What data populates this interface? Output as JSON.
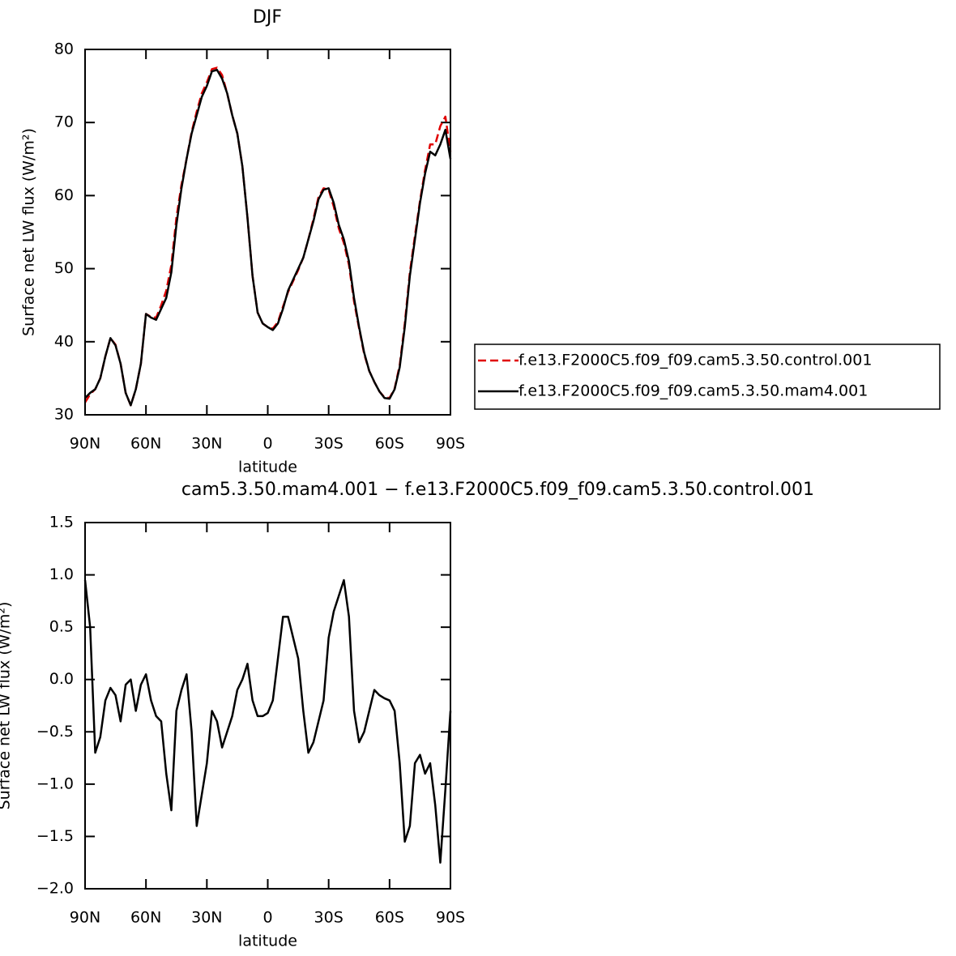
{
  "chart_data": [
    {
      "type": "line",
      "title": "DJF",
      "xlabel": "latitude",
      "ylabel": "Surface net LW flux (W/m²)",
      "x": [
        90,
        87.5,
        85,
        82.5,
        80,
        77.5,
        75,
        72.5,
        70,
        67.5,
        65,
        62.5,
        60,
        57.5,
        55,
        52.5,
        50,
        47.5,
        45,
        42.5,
        40,
        37.5,
        35,
        32.5,
        30,
        27.5,
        25,
        22.5,
        20,
        17.5,
        15,
        12.5,
        10,
        7.5,
        5,
        2.5,
        0,
        -2.5,
        -5,
        -7.5,
        -10,
        -12.5,
        -15,
        -17.5,
        -20,
        -22.5,
        -25,
        -27.5,
        -30,
        -32.5,
        -35,
        -37.5,
        -40,
        -42.5,
        -45,
        -47.5,
        -50,
        -52.5,
        -55,
        -57.5,
        -60,
        -62.5,
        -65,
        -67.5,
        -70,
        -72.5,
        -75,
        -77.5,
        -80,
        -82.5,
        -85,
        -87.5,
        -90
      ],
      "xlim": [
        90,
        -90
      ],
      "xticks": [
        {
          "value": 90,
          "label": "90N"
        },
        {
          "value": 60,
          "label": "60N"
        },
        {
          "value": 30,
          "label": "30N"
        },
        0,
        {
          "value": -30,
          "label": "30S"
        },
        {
          "value": -60,
          "label": "60S"
        },
        {
          "value": -90,
          "label": "90S"
        }
      ],
      "ylim": [
        30,
        80
      ],
      "yticks": [
        30,
        40,
        50,
        60,
        70,
        80
      ],
      "legend": "right",
      "series": [
        {
          "name": "f.e13.F2000C5.f09_f09.cam5.3.50.control.001",
          "color": "#e00000",
          "dash": true,
          "values": [
            31.7,
            32.8,
            33.5,
            35,
            38,
            40.5,
            39.6,
            37,
            33,
            31.3,
            33.5,
            37,
            43.8,
            43.4,
            43.3,
            45,
            47,
            50.5,
            57,
            61.5,
            65,
            68.7,
            71.5,
            74,
            75.5,
            77.3,
            77.5,
            76.5,
            74,
            71,
            68.5,
            64,
            57,
            49,
            44,
            42.5,
            42,
            41.8,
            42.7,
            44.8,
            46.8,
            48.3,
            49.8,
            51.5,
            54,
            56.8,
            59.8,
            61,
            60.8,
            58.5,
            55.5,
            53.5,
            50.5,
            45.5,
            41.8,
            38.3,
            36,
            34.5,
            33.2,
            32.4,
            32.3,
            33.6,
            36.8,
            42.5,
            49.5,
            54.5,
            59.3,
            63.5,
            67,
            67,
            69.5,
            70.8,
            66
          ]
        },
        {
          "name": "f.e13.F2000C5.f09_f09.cam5.3.50.mam4.001",
          "color": "#000000",
          "dash": false,
          "values": [
            32.3,
            33,
            33.5,
            35,
            38,
            40.5,
            39.5,
            37,
            33,
            31.3,
            33.5,
            37,
            43.8,
            43.3,
            43,
            44.5,
            46,
            49.5,
            56,
            61,
            65,
            68.5,
            71,
            73.5,
            75,
            77,
            77.2,
            76,
            74,
            71,
            68.5,
            64,
            57,
            49,
            44,
            42.5,
            42,
            41.6,
            42.5,
            44.5,
            47,
            48.5,
            50,
            51.5,
            54,
            56.5,
            59.5,
            60.8,
            61,
            59,
            56,
            54,
            51,
            46,
            42,
            38.5,
            36,
            34.5,
            33.2,
            32.3,
            32.2,
            33.5,
            36.5,
            42,
            49,
            54,
            59,
            63,
            66,
            65.5,
            67,
            69,
            65
          ]
        }
      ]
    },
    {
      "type": "line",
      "title": "cam5.3.50.mam4.001 − f.e13.F2000C5.f09_f09.cam5.3.50.control.001",
      "xlabel": "latitude",
      "ylabel": "Surface net LW flux (W/m²)",
      "x": [
        90,
        87.5,
        85,
        82.5,
        80,
        77.5,
        75,
        72.5,
        70,
        67.5,
        65,
        62.5,
        60,
        57.5,
        55,
        52.5,
        50,
        47.5,
        45,
        42.5,
        40,
        37.5,
        35,
        32.5,
        30,
        27.5,
        25,
        22.5,
        20,
        17.5,
        15,
        12.5,
        10,
        7.5,
        5,
        2.5,
        0,
        -2.5,
        -5,
        -7.5,
        -10,
        -12.5,
        -15,
        -17.5,
        -20,
        -22.5,
        -25,
        -27.5,
        -30,
        -32.5,
        -35,
        -37.5,
        -40,
        -42.5,
        -45,
        -47.5,
        -50,
        -52.5,
        -55,
        -57.5,
        -60,
        -62.5,
        -65,
        -67.5,
        -70,
        -72.5,
        -75,
        -77.5,
        -80,
        -82.5,
        -85,
        -87.5,
        -90
      ],
      "xlim": [
        90,
        -90
      ],
      "xticks": [
        {
          "value": 90,
          "label": "90N"
        },
        {
          "value": 60,
          "label": "60N"
        },
        {
          "value": 30,
          "label": "30N"
        },
        0,
        {
          "value": -30,
          "label": "30S"
        },
        {
          "value": -60,
          "label": "60S"
        },
        {
          "value": -90,
          "label": "90S"
        }
      ],
      "ylim": [
        -2.0,
        1.5
      ],
      "yticks": [
        {
          "value": -2.0,
          "label": "−2.0"
        },
        {
          "value": -1.5,
          "label": "−1.5"
        },
        {
          "value": -1.0,
          "label": "−1.0"
        },
        {
          "value": -0.5,
          "label": "−0.5"
        },
        {
          "value": 0.0,
          "label": "0.0"
        },
        0.5,
        {
          "value": 1.0,
          "label": "1.0"
        },
        1.5
      ],
      "color": "#000000",
      "values": [
        0.95,
        0.5,
        -0.7,
        -0.55,
        -0.2,
        -0.08,
        -0.15,
        -0.4,
        -0.05,
        0.0,
        -0.3,
        -0.05,
        0.05,
        -0.2,
        -0.35,
        -0.4,
        -0.9,
        -1.25,
        -0.3,
        -0.1,
        0.05,
        -0.5,
        -1.4,
        -1.1,
        -0.8,
        -0.3,
        -0.4,
        -0.65,
        -0.5,
        -0.35,
        -0.1,
        0.0,
        0.15,
        -0.2,
        -0.35,
        -0.35,
        -0.32,
        -0.2,
        0.2,
        0.6,
        0.6,
        0.4,
        0.2,
        -0.3,
        -0.7,
        -0.6,
        -0.4,
        -0.2,
        0.4,
        0.65,
        0.8,
        0.95,
        0.6,
        -0.3,
        -0.6,
        -0.5,
        -0.3,
        -0.1,
        -0.15,
        -0.18,
        -0.2,
        -0.3,
        -0.8,
        -1.55,
        -1.4,
        -0.8,
        -0.72,
        -0.9,
        -0.8,
        -1.2,
        -1.75,
        -1.05,
        -0.3
      ]
    }
  ]
}
